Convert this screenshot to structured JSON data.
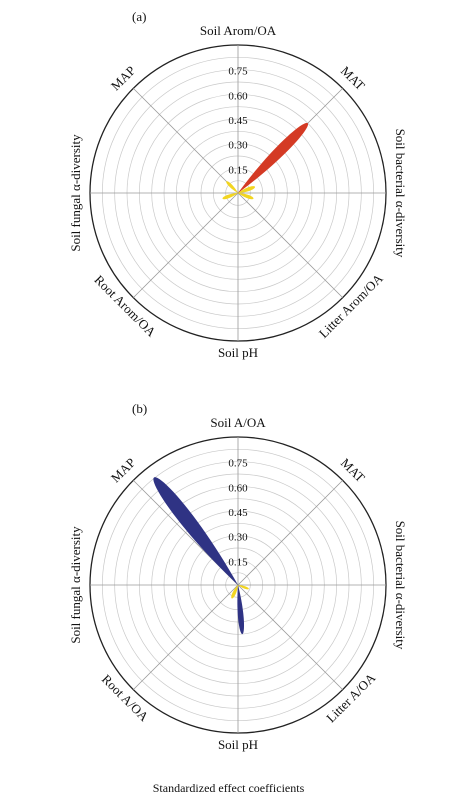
{
  "figure_caption": "Standardized effect coefficients",
  "chart_data": [
    {
      "type": "polar_rose",
      "panel_tag": "(a)",
      "r_ticks": [
        "0.15",
        "0.30",
        "0.45",
        "0.60",
        "0.75"
      ],
      "r_max": 0.9,
      "grid": true,
      "axes": [
        {
          "label": "Soil Arom/OA",
          "angle_deg": 0
        },
        {
          "label": "MAT",
          "angle_deg": 45
        },
        {
          "label": "Soil bacterial α-diversity",
          "angle_deg": 90
        },
        {
          "label": "Litter Arom/OA",
          "angle_deg": 135
        },
        {
          "label": "Soil pH",
          "angle_deg": 180
        },
        {
          "label": "Root Arom/OA",
          "angle_deg": 225
        },
        {
          "label": "Soil fungal α-diversity",
          "angle_deg": 270
        },
        {
          "label": "MAP",
          "angle_deg": 315
        }
      ],
      "petals": [
        {
          "angle_deg": 45,
          "value": 0.6,
          "width": 0.3,
          "color": "#d43a24"
        },
        {
          "angle_deg": 315,
          "value": 0.1,
          "width": 0.55,
          "color": "#f2d521"
        },
        {
          "angle_deg": 70,
          "value": 0.11,
          "width": 0.6,
          "color": "#f2d521"
        },
        {
          "angle_deg": 110,
          "value": 0.1,
          "width": 0.6,
          "color": "#f2d521"
        },
        {
          "angle_deg": 250,
          "value": 0.1,
          "width": 0.6,
          "color": "#f2d521"
        }
      ]
    },
    {
      "type": "polar_rose",
      "panel_tag": "(b)",
      "r_ticks": [
        "0.15",
        "0.30",
        "0.45",
        "0.60",
        "0.75"
      ],
      "r_max": 0.9,
      "grid": true,
      "axes": [
        {
          "label": "Soil A/OA",
          "angle_deg": 0
        },
        {
          "label": "MAT",
          "angle_deg": 45
        },
        {
          "label": "Soil bacterial α-diversity",
          "angle_deg": 90
        },
        {
          "label": "Litter A/OA",
          "angle_deg": 135
        },
        {
          "label": "Soil pH",
          "angle_deg": 180
        },
        {
          "label": "Root A/OA",
          "angle_deg": 225
        },
        {
          "label": "Soil fungal α-diversity",
          "angle_deg": 270
        },
        {
          "label": "MAP",
          "angle_deg": 315
        }
      ],
      "petals": [
        {
          "angle_deg": 322,
          "value": 0.83,
          "width": 0.3,
          "color": "#2f3384"
        },
        {
          "angle_deg": 175,
          "value": 0.3,
          "width": 0.32,
          "color": "#2f3384"
        },
        {
          "angle_deg": 205,
          "value": 0.09,
          "width": 0.65,
          "color": "#f2d521"
        },
        {
          "angle_deg": 110,
          "value": 0.07,
          "width": 0.6,
          "color": "#f2d521"
        }
      ]
    }
  ]
}
